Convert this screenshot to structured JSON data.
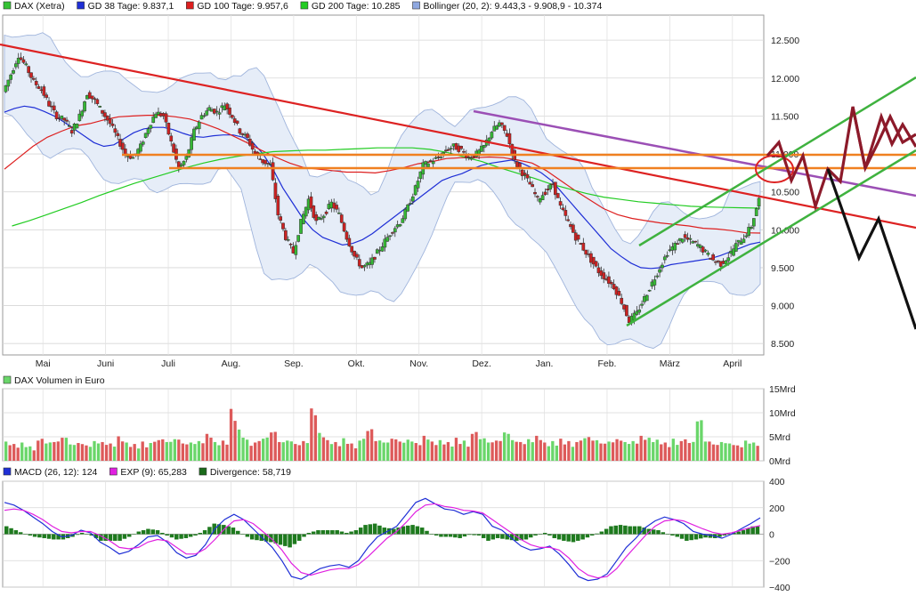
{
  "chart_data": [
    {
      "type": "line",
      "panel": "price",
      "instrument": "DAX (Xetra)",
      "legend": [
        {
          "name": "DAX (Xetra)",
          "color": "#35c235",
          "swatch": "candle-icon"
        },
        {
          "name": "GD 38 Tage: 9.837,1",
          "color": "#1f2fd6"
        },
        {
          "name": "GD 100 Tage: 9.957,6",
          "color": "#dd1f1f"
        },
        {
          "name": "GD 200 Tage: 10.285",
          "color": "#22cc22"
        },
        {
          "name": "Bollinger (20, 2): 9.443,3 - 9.908,9 - 10.374",
          "color": "#8fa8e0"
        }
      ],
      "x_tick_labels": [
        "Mai",
        "Juni",
        "Juli",
        "Aug.",
        "Sep.",
        "Okt.",
        "Nov.",
        "Dez.",
        "Jan.",
        "Feb.",
        "März",
        "April"
      ],
      "y_tick_labels": [
        "12.500",
        "12.000",
        "11.500",
        "11.000",
        "10.500",
        "10.000",
        "9.500",
        "9.000",
        "8.500"
      ],
      "y_ticks": [
        12500,
        12000,
        11500,
        11000,
        10500,
        10000,
        9500,
        9000,
        8500
      ],
      "ylim": [
        8350,
        12830
      ],
      "x_range_months": [
        0,
        12
      ],
      "grid": true,
      "legend_position": "top",
      "series": [
        {
          "name": "DAX (Xetra)",
          "role": "close",
          "values": [
            11820,
            12050,
            12300,
            12150,
            11950,
            11850,
            11650,
            11500,
            11450,
            11300,
            11500,
            11800,
            11700,
            11550,
            11400,
            11200,
            11000,
            10950,
            11100,
            11350,
            11550,
            11500,
            11150,
            10800,
            10950,
            11300,
            11500,
            11600,
            11550,
            11650,
            11500,
            11300,
            11200,
            11000,
            10900,
            10850,
            10200,
            9900,
            9700,
            10100,
            10400,
            10100,
            10200,
            10350,
            10200,
            9900,
            9650,
            9500,
            9550,
            9700,
            9850,
            10000,
            10100,
            10300,
            10550,
            10850,
            10900,
            10950,
            11050,
            11100,
            11050,
            10950,
            11000,
            11100,
            11300,
            11400,
            11250,
            10900,
            10750,
            10600,
            10400,
            10500,
            10600,
            10300,
            10100,
            9900,
            9750,
            9600,
            9450,
            9350,
            9250,
            9050,
            8800,
            8900,
            9100,
            9300,
            9500,
            9700,
            9800,
            9900,
            9850,
            9800,
            9700,
            9600,
            9550,
            9650,
            9800,
            9900,
            10050,
            10400
          ]
        },
        {
          "name": "GD 38 Tage",
          "values": [
            11550,
            11600,
            11630,
            11610,
            11560,
            11500,
            11420,
            11330,
            11240,
            11150,
            11100,
            11120,
            11200,
            11280,
            11330,
            11350,
            11350,
            11320,
            11270,
            11230,
            11220,
            11240,
            11250,
            11250,
            11220,
            11150,
            11000,
            10800,
            10550,
            10350,
            10150,
            10000,
            9900,
            9850,
            9800,
            9820,
            9870,
            9950,
            10050,
            10150,
            10250,
            10350,
            10450,
            10550,
            10650,
            10700,
            10740,
            10800,
            10850,
            10880,
            10900,
            10920,
            10880,
            10820,
            10750,
            10650,
            10500,
            10350,
            10200,
            10050,
            9900,
            9750,
            9650,
            9560,
            9500,
            9490,
            9500,
            9540,
            9560,
            9580,
            9600,
            9620,
            9660,
            9710,
            9760,
            9810,
            9837
          ]
        },
        {
          "name": "GD 100 Tage",
          "values": [
            10800,
            10950,
            11100,
            11220,
            11300,
            11370,
            11400,
            11450,
            11490,
            11500,
            11510,
            11510,
            11490,
            11460,
            11400,
            11330,
            11240,
            11150,
            11050,
            10960,
            10880,
            10820,
            10800,
            10780,
            10760,
            10760,
            10750,
            10780,
            10820,
            10870,
            10900,
            10940,
            10950,
            10950,
            10960,
            10950,
            10920,
            10880,
            10780,
            10650,
            10520,
            10400,
            10280,
            10200,
            10150,
            10120,
            10090,
            10070,
            10050,
            10020,
            10010,
            9990,
            9960,
            9957
          ]
        },
        {
          "name": "GD 200 Tage",
          "values": [
            10050,
            10120,
            10200,
            10280,
            10360,
            10450,
            10530,
            10610,
            10680,
            10750,
            10820,
            10880,
            10930,
            10970,
            11000,
            11030,
            11040,
            11050,
            11050,
            11060,
            11070,
            11080,
            11080,
            11080,
            11060,
            11020,
            10960,
            10900,
            10820,
            10750,
            10680,
            10600,
            10540,
            10480,
            10430,
            10400,
            10370,
            10350,
            10330,
            10310,
            10300,
            10295,
            10290,
            10285
          ]
        }
      ]
    },
    {
      "type": "bar",
      "panel": "volume",
      "legend": [
        {
          "name": "DAX Volumen in Euro",
          "color": "#6ad66a"
        }
      ],
      "y_tick_labels": [
        "15Mrd",
        "10Mrd",
        "5Mrd",
        "0Mrd"
      ],
      "y_ticks": [
        15,
        10,
        5,
        0
      ],
      "ylim": [
        0,
        15
      ],
      "unit": "Mrd",
      "values": [
        4,
        3.5,
        3.8,
        3,
        4.2,
        3.6,
        3.9,
        4.8,
        3.4,
        3.7,
        3.2,
        4.1,
        3.9,
        3.6,
        5.1,
        3.8,
        3.5,
        4,
        3.7,
        4.3,
        3.9,
        4.5,
        3.6,
        3.8,
        4.1,
        5.6,
        3.9,
        4.2,
        10.8,
        6.5,
        4.4,
        3.8,
        4.6,
        5.9,
        3.9,
        4.2,
        3.5,
        4.1,
        10.9,
        5.8,
        4.3,
        3.9,
        4.7,
        3.6,
        4.2,
        6.2,
        4.1,
        3.8,
        4.6,
        4,
        4.4,
        3.7,
        5.2,
        4,
        4.3,
        3.9,
        4.8,
        4.2,
        5.6,
        4.5,
        3.8,
        4.2,
        5.9,
        4.3,
        3.9,
        4.5,
        5.2,
        3.8,
        4.1,
        4.6,
        4.1,
        3.9,
        4.7,
        4.2,
        3.6,
        4,
        4.5,
        3.9,
        4.1,
        5.2,
        4.8,
        4.4,
        3.8,
        4.6,
        4.1,
        3.7,
        8.2,
        4,
        3.4,
        3.9,
        3.6,
        3.2,
        4.2,
        3.8
      ],
      "colors": [
        "up",
        "down",
        "up",
        "up",
        "down",
        "up",
        "down",
        "up",
        "up",
        "down",
        "up",
        "up",
        "down",
        "up",
        "down",
        "up",
        "up",
        "down",
        "up",
        "down",
        "up",
        "up",
        "down",
        "up",
        "up",
        "down",
        "up",
        "down",
        "down",
        "up",
        "up",
        "down",
        "up",
        "down",
        "up",
        "up",
        "down",
        "up",
        "down",
        "up",
        "up",
        "down",
        "up",
        "down",
        "up",
        "down",
        "up",
        "up",
        "down",
        "up",
        "up",
        "down",
        "up",
        "down",
        "up",
        "up",
        "down",
        "up",
        "down",
        "up",
        "up",
        "down",
        "up",
        "up",
        "down",
        "up",
        "down",
        "up",
        "up",
        "down",
        "up",
        "down",
        "up",
        "up",
        "down",
        "up",
        "down",
        "up",
        "up",
        "down",
        "up",
        "up",
        "down",
        "up",
        "down",
        "up",
        "up",
        "up",
        "down",
        "up",
        "up",
        "down",
        "up",
        "up"
      ]
    },
    {
      "type": "line",
      "panel": "macd",
      "legend": [
        {
          "name": "MACD (26, 12): 124",
          "color": "#1f2fd6"
        },
        {
          "name": "EXP (9): 65,283",
          "color": "#e020e0"
        },
        {
          "name": "Divergence: 58,719",
          "color": "#1a6a1a"
        }
      ],
      "y_tick_labels": [
        "400",
        "200",
        "0",
        "−200",
        "−400"
      ],
      "y_ticks": [
        400,
        200,
        0,
        -200,
        -400
      ],
      "ylim": [
        -400,
        400
      ],
      "series": [
        {
          "name": "MACD (26, 12)",
          "values": [
            240,
            220,
            180,
            130,
            80,
            20,
            -20,
            -10,
            30,
            10,
            -60,
            -100,
            -150,
            -130,
            -80,
            -20,
            -10,
            -60,
            -140,
            -180,
            -160,
            -80,
            40,
            110,
            150,
            110,
            40,
            -30,
            -100,
            -200,
            -320,
            -340,
            -300,
            -260,
            -240,
            -230,
            -250,
            -200,
            -100,
            -20,
            20,
            60,
            150,
            240,
            270,
            230,
            190,
            180,
            150,
            170,
            150,
            60,
            30,
            -30,
            -90,
            -120,
            -110,
            -90,
            -150,
            -230,
            -320,
            -350,
            -340,
            -300,
            -200,
            -100,
            -30,
            50,
            100,
            130,
            110,
            80,
            20,
            0,
            -10,
            -30,
            0,
            40,
            80,
            124
          ]
        },
        {
          "name": "EXP (9)",
          "values": [
            180,
            190,
            180,
            150,
            110,
            60,
            20,
            10,
            20,
            20,
            -10,
            -50,
            -100,
            -110,
            -100,
            -60,
            -40,
            -50,
            -100,
            -150,
            -150,
            -110,
            -40,
            40,
            100,
            110,
            80,
            20,
            -40,
            -120,
            -220,
            -290,
            -310,
            -290,
            -270,
            -260,
            -260,
            -230,
            -170,
            -100,
            -30,
            20,
            90,
            170,
            220,
            230,
            210,
            200,
            180,
            175,
            160,
            110,
            60,
            10,
            -40,
            -80,
            -100,
            -100,
            -120,
            -180,
            -260,
            -310,
            -330,
            -320,
            -260,
            -170,
            -90,
            -10,
            60,
            100,
            110,
            100,
            70,
            40,
            15,
            0,
            10,
            30,
            50,
            65
          ]
        },
        {
          "name": "Divergence",
          "type": "bar",
          "values": [
            60,
            30,
            0,
            -20,
            -30,
            -40,
            -40,
            -20,
            10,
            -10,
            -50,
            -50,
            -50,
            -20,
            20,
            40,
            30,
            -10,
            -40,
            -30,
            -10,
            30,
            80,
            70,
            50,
            0,
            -40,
            -50,
            -60,
            -80,
            -100,
            -50,
            10,
            30,
            30,
            30,
            10,
            30,
            70,
            80,
            50,
            40,
            60,
            70,
            50,
            0,
            -20,
            -20,
            -30,
            -5,
            -10,
            -50,
            -30,
            -40,
            -50,
            -40,
            -10,
            10,
            -30,
            -50,
            -60,
            -40,
            -10,
            20,
            60,
            70,
            60,
            60,
            40,
            30,
            0,
            -20,
            -50,
            -40,
            -25,
            -30,
            -10,
            10,
            30,
            59
          ]
        }
      ]
    }
  ],
  "price_panel": {
    "tick_color": "#222222",
    "up_color": "#35b835",
    "down_color": "#cc2222"
  },
  "volume_panel": {
    "up_color": "#6ad66a",
    "down_color": "#dd5a5a"
  }
}
